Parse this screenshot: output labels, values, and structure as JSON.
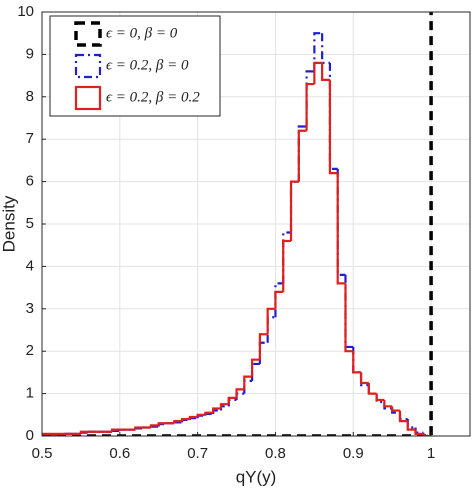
{
  "chart_data": {
    "type": "histogram",
    "xlabel": "qY(y)",
    "ylabel": "Density",
    "bins": [
      0.5,
      0.51,
      0.52,
      0.53,
      0.54,
      0.55,
      0.56,
      0.57,
      0.58,
      0.59,
      0.6,
      0.61,
      0.62,
      0.63,
      0.64,
      0.65,
      0.66,
      0.67,
      0.68,
      0.69,
      0.7,
      0.71,
      0.72,
      0.73,
      0.74,
      0.75,
      0.76,
      0.77,
      0.78,
      0.79,
      0.8,
      0.81,
      0.82,
      0.83,
      0.84,
      0.85,
      0.86,
      0.87,
      0.88,
      0.89,
      0.9,
      0.91,
      0.92,
      0.93,
      0.94,
      0.95,
      0.96,
      0.97,
      0.98,
      0.99,
      1.0
    ],
    "series": [
      {
        "name": "ϵ = 0, β = 0",
        "color": "#000000",
        "linestyle": "dashed",
        "x": [
          0.5,
          1,
          1
        ],
        "values": [
          0,
          0,
          10
        ]
      },
      {
        "name": "ϵ = 0.2, β = 0",
        "color": "#1f1fd0",
        "linestyle": "dashdot",
        "values": [
          0.04,
          0.04,
          0.04,
          0.05,
          0.05,
          0.08,
          0.1,
          0.1,
          0.1,
          0.12,
          0.15,
          0.15,
          0.18,
          0.2,
          0.22,
          0.28,
          0.3,
          0.32,
          0.38,
          0.42,
          0.48,
          0.52,
          0.6,
          0.7,
          0.85,
          1.0,
          1.3,
          1.7,
          2.2,
          2.8,
          3.6,
          4.8,
          6.0,
          7.3,
          8.6,
          9.5,
          8.8,
          6.3,
          3.8,
          2.1,
          1.5,
          1.2,
          1.0,
          0.8,
          0.65,
          0.55,
          0.4,
          0.2,
          0.08,
          0
        ]
      },
      {
        "name": "ϵ = 0.2, β = 0.2",
        "color": "#e0201c",
        "linestyle": "solid",
        "values": [
          0.05,
          0.05,
          0.05,
          0.05,
          0.05,
          0.1,
          0.1,
          0.1,
          0.1,
          0.15,
          0.15,
          0.15,
          0.2,
          0.2,
          0.25,
          0.3,
          0.3,
          0.35,
          0.4,
          0.45,
          0.5,
          0.55,
          0.65,
          0.75,
          0.9,
          1.1,
          1.4,
          1.8,
          2.4,
          3.0,
          3.4,
          4.6,
          6.0,
          7.2,
          8.3,
          8.8,
          8.4,
          6.2,
          3.6,
          2.0,
          1.5,
          1.25,
          1.0,
          0.85,
          0.7,
          0.6,
          0.35,
          0.15,
          0.05,
          0
        ]
      }
    ],
    "xlim": [
      0.5,
      1.05
    ],
    "ylim": [
      0,
      10
    ],
    "xticks": [
      0.5,
      0.6,
      0.7,
      0.8,
      0.9,
      1
    ],
    "yticks": [
      0,
      1,
      2,
      3,
      4,
      5,
      6,
      7,
      8,
      9,
      10
    ],
    "grid": true,
    "legend": "upper left"
  }
}
